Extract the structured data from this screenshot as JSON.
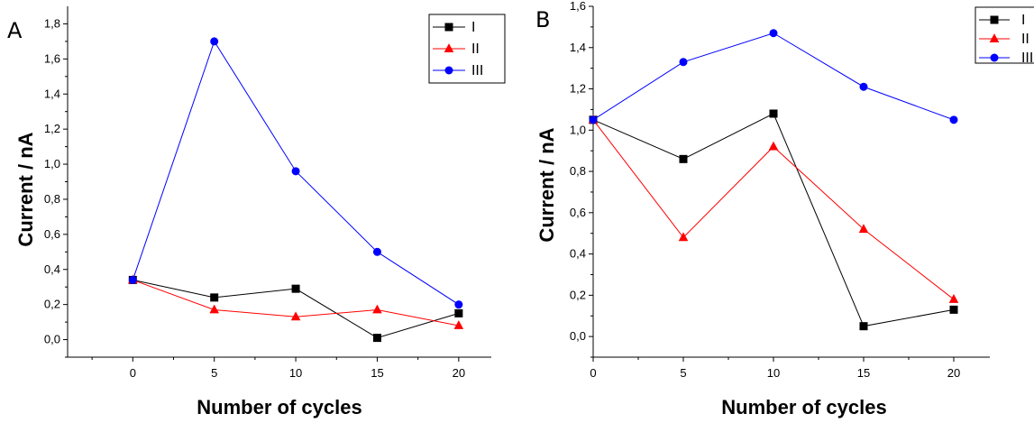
{
  "chart_data": [
    {
      "type": "line",
      "panel_label": "A",
      "xlabel": "Number of cycles",
      "ylabel": "Current / nA",
      "x": [
        0,
        5,
        10,
        15,
        20
      ],
      "xlim": [
        -4,
        22
      ],
      "xticks": [
        "0",
        "5",
        "10",
        "15",
        "20"
      ],
      "ylim": [
        -0.1,
        1.9
      ],
      "yticks": [
        "0,0",
        "0,2",
        "0,4",
        "0,6",
        "0,8",
        "1,0",
        "1,2",
        "1,4",
        "1,6",
        "1,8"
      ],
      "grid": false,
      "legend_position": "top-right",
      "series": [
        {
          "name": "I",
          "color": "#000000",
          "marker": "square",
          "values": [
            0.34,
            0.24,
            0.29,
            0.01,
            0.15
          ]
        },
        {
          "name": "II",
          "color": "#ff0000",
          "marker": "triangle",
          "values": [
            0.34,
            0.17,
            0.13,
            0.17,
            0.08
          ]
        },
        {
          "name": "III",
          "color": "#0000ff",
          "marker": "circle",
          "values": [
            0.34,
            1.7,
            0.96,
            0.5,
            0.2
          ]
        }
      ]
    },
    {
      "type": "line",
      "panel_label": "B",
      "xlabel": "Number of cycles",
      "ylabel": "Current / nA",
      "x": [
        0,
        5,
        10,
        15,
        20
      ],
      "xlim": [
        0,
        22
      ],
      "xticks": [
        "0",
        "5",
        "10",
        "15",
        "20"
      ],
      "ylim": [
        -0.1,
        1.6
      ],
      "yticks": [
        "0,0",
        "0,2",
        "0,4",
        "0,6",
        "0,8",
        "1,0",
        "1,2",
        "1,4",
        "1,6"
      ],
      "grid": false,
      "legend_position": "top-right",
      "series": [
        {
          "name": "I",
          "color": "#000000",
          "marker": "square",
          "values": [
            1.05,
            0.86,
            1.08,
            0.05,
            0.13
          ]
        },
        {
          "name": "II",
          "color": "#ff0000",
          "marker": "triangle",
          "values": [
            1.05,
            0.48,
            0.92,
            0.52,
            0.18
          ]
        },
        {
          "name": "III",
          "color": "#0000ff",
          "marker": "circle",
          "values": [
            1.05,
            1.33,
            1.47,
            1.21,
            1.05
          ]
        }
      ]
    }
  ]
}
